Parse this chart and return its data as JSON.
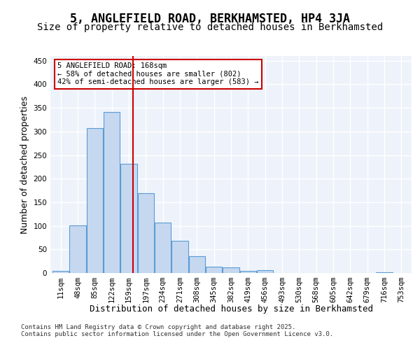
{
  "title": "5, ANGLEFIELD ROAD, BERKHAMSTED, HP4 3JA",
  "subtitle": "Size of property relative to detached houses in Berkhamsted",
  "xlabel": "Distribution of detached houses by size in Berkhamsted",
  "ylabel": "Number of detached properties",
  "bin_labels": [
    "11sqm",
    "48sqm",
    "85sqm",
    "122sqm",
    "159sqm",
    "197sqm",
    "234sqm",
    "271sqm",
    "308sqm",
    "345sqm",
    "382sqm",
    "419sqm",
    "456sqm",
    "493sqm",
    "530sqm",
    "568sqm",
    "605sqm",
    "642sqm",
    "679sqm",
    "716sqm",
    "753sqm"
  ],
  "bar_heights": [
    4,
    101,
    307,
    341,
    231,
    169,
    107,
    68,
    35,
    13,
    12,
    5,
    6,
    0,
    0,
    0,
    0,
    0,
    0,
    2,
    0
  ],
  "bar_color": "#c5d8f0",
  "bar_edgecolor": "#5b9bd5",
  "background_color": "#eef3fb",
  "grid_color": "#ffffff",
  "vline_x": 4.24,
  "vline_color": "#cc0000",
  "annotation_text": "5 ANGLEFIELD ROAD: 168sqm\n← 58% of detached houses are smaller (802)\n42% of semi-detached houses are larger (583) →",
  "annotation_box_color": "#ffffff",
  "annotation_box_edgecolor": "#cc0000",
  "ylim": [
    0,
    460
  ],
  "yticks": [
    0,
    50,
    100,
    150,
    200,
    250,
    300,
    350,
    400,
    450
  ],
  "footer_text": "Contains HM Land Registry data © Crown copyright and database right 2025.\nContains public sector information licensed under the Open Government Licence v3.0.",
  "title_fontsize": 12,
  "subtitle_fontsize": 10,
  "tick_fontsize": 7.5,
  "ylabel_fontsize": 9,
  "xlabel_fontsize": 9
}
